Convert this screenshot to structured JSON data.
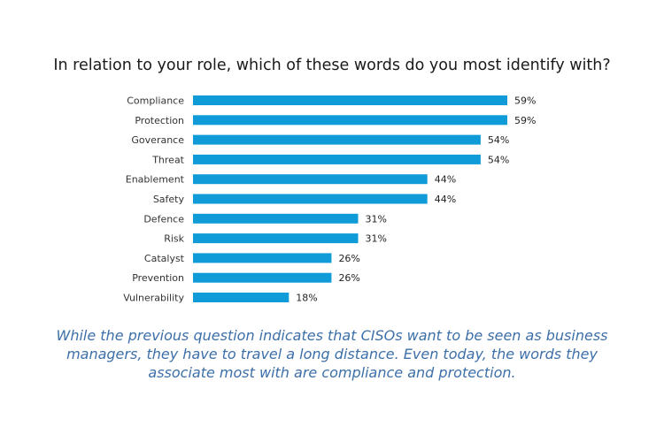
{
  "caption": "While the previous question indicates that CISOs want to be seen as business managers, they have to travel a long distance. Even today, the words they associate most with are compliance and protection.",
  "colors": {
    "bar": "#0e9bd8",
    "caption": "#3d6fa8"
  },
  "chart_data": {
    "type": "bar",
    "orientation": "horizontal",
    "title": "In relation to your role, which of these words do you most identify with?",
    "categories": [
      "Compliance",
      "Protection",
      "Goverance",
      "Threat",
      "Enablement",
      "Safety",
      "Defence",
      "Risk",
      "Catalyst",
      "Prevention",
      "Vulnerability"
    ],
    "values": [
      59,
      59,
      54,
      54,
      44,
      44,
      31,
      31,
      26,
      26,
      18
    ],
    "value_labels": [
      "59%",
      "59%",
      "54%",
      "54%",
      "44%",
      "44%",
      "31%",
      "31%",
      "26%",
      "26%",
      "18%"
    ],
    "unit": "%",
    "xlim": [
      0,
      59
    ],
    "grid": false,
    "legend": "none"
  }
}
